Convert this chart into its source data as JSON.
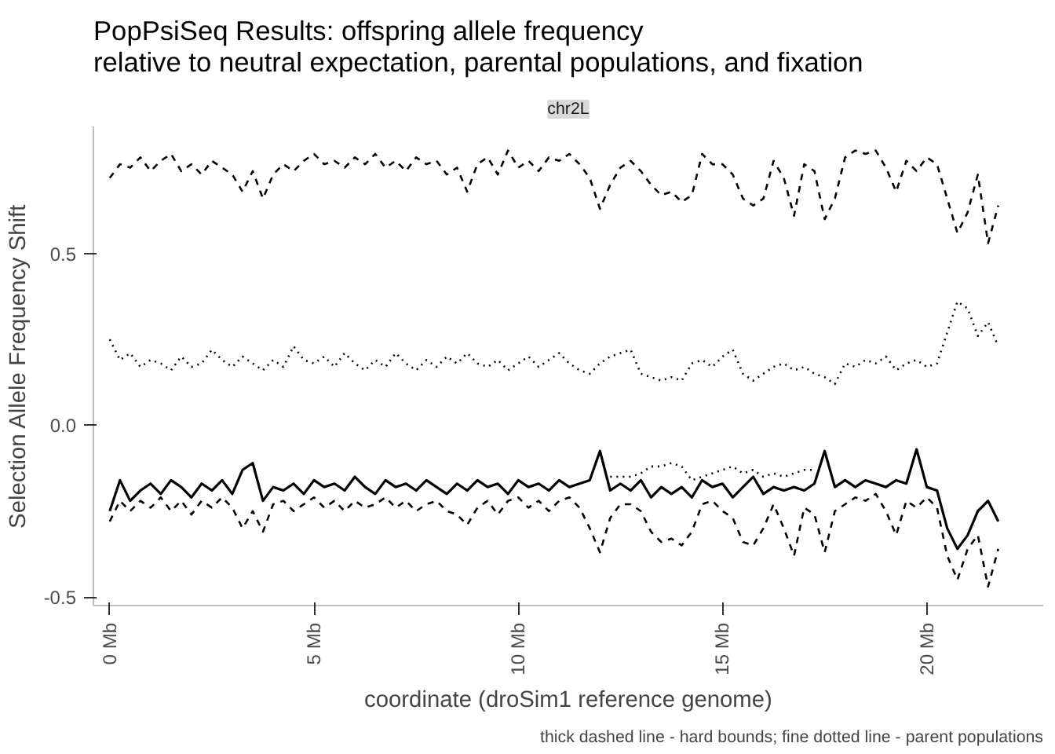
{
  "chart_data": {
    "type": "line",
    "title": "PopPsiSeq Results: offspring allele frequency\nrelative to neutral expectation, parental populations, and fixation",
    "subtitle": "chr2L",
    "xlabel": "coordinate (droSim1 reference genome)",
    "ylabel": "Selection Allele Frequency Shift",
    "annotations": [
      "thick dashed line - hard bounds; fine dotted line - parent populations"
    ],
    "x": [
      0,
      0.25,
      0.5,
      0.75,
      1,
      1.25,
      1.5,
      1.75,
      2,
      2.25,
      2.5,
      2.75,
      3,
      3.25,
      3.5,
      3.75,
      4,
      4.25,
      4.5,
      4.75,
      5,
      5.25,
      5.5,
      5.75,
      6,
      6.25,
      6.5,
      6.75,
      7,
      7.25,
      7.5,
      7.75,
      8,
      8.25,
      8.5,
      8.75,
      9,
      9.25,
      9.5,
      9.75,
      10,
      10.25,
      10.5,
      10.75,
      11,
      11.25,
      11.5,
      11.75,
      12,
      12.25,
      12.5,
      12.75,
      13,
      13.25,
      13.5,
      13.75,
      14,
      14.25,
      14.5,
      14.75,
      15,
      15.25,
      15.5,
      15.75,
      16,
      16.25,
      16.5,
      16.75,
      17,
      17.25,
      17.5,
      17.75,
      18,
      18.25,
      18.5,
      18.75,
      19,
      19.25,
      19.5,
      19.75,
      20,
      20.25,
      20.5,
      20.75,
      21,
      21.25,
      21.5,
      21.75
    ],
    "series": [
      {
        "color": "#000000",
        "line_style": "dashed",
        "values": [
          0.72,
          0.76,
          0.75,
          0.78,
          0.74,
          0.77,
          0.79,
          0.74,
          0.76,
          0.73,
          0.77,
          0.75,
          0.73,
          0.68,
          0.74,
          0.66,
          0.73,
          0.76,
          0.74,
          0.77,
          0.79,
          0.76,
          0.77,
          0.75,
          0.78,
          0.76,
          0.79,
          0.75,
          0.77,
          0.74,
          0.78,
          0.76,
          0.77,
          0.73,
          0.75,
          0.68,
          0.76,
          0.78,
          0.73,
          0.8,
          0.75,
          0.77,
          0.74,
          0.78,
          0.77,
          0.79,
          0.76,
          0.72,
          0.63,
          0.7,
          0.75,
          0.77,
          0.74,
          0.7,
          0.67,
          0.68,
          0.65,
          0.67,
          0.79,
          0.76,
          0.76,
          0.73,
          0.66,
          0.64,
          0.66,
          0.77,
          0.72,
          0.61,
          0.76,
          0.74,
          0.6,
          0.66,
          0.78,
          0.8,
          0.79,
          0.8,
          0.75,
          0.68,
          0.77,
          0.74,
          0.78,
          0.76,
          0.66,
          0.56,
          0.62,
          0.73,
          0.53,
          0.64
        ]
      },
      {
        "color": "#000000",
        "line_style": "dotted",
        "values": [
          0.25,
          0.19,
          0.21,
          0.17,
          0.19,
          0.18,
          0.16,
          0.2,
          0.17,
          0.18,
          0.22,
          0.19,
          0.17,
          0.2,
          0.18,
          0.16,
          0.19,
          0.17,
          0.23,
          0.19,
          0.18,
          0.2,
          0.17,
          0.21,
          0.18,
          0.16,
          0.19,
          0.17,
          0.21,
          0.18,
          0.16,
          0.19,
          0.17,
          0.2,
          0.18,
          0.21,
          0.18,
          0.17,
          0.19,
          0.16,
          0.18,
          0.2,
          0.17,
          0.19,
          0.21,
          0.18,
          0.16,
          0.15,
          0.18,
          0.2,
          0.21,
          0.22,
          0.15,
          0.14,
          0.13,
          0.14,
          0.13,
          0.18,
          0.19,
          0.17,
          0.2,
          0.22,
          0.15,
          0.13,
          0.15,
          0.17,
          0.18,
          0.16,
          0.17,
          0.15,
          0.14,
          0.12,
          0.18,
          0.17,
          0.19,
          0.18,
          0.2,
          0.16,
          0.18,
          0.19,
          0.17,
          0.18,
          0.27,
          0.36,
          0.34,
          0.26,
          0.3,
          0.23
        ]
      },
      {
        "color": "#000000",
        "line_style": "dotted",
        "x": [
          12.25,
          12.5,
          12.75,
          13,
          13.25,
          13.5,
          13.75,
          14,
          14.25,
          14.5,
          14.75,
          15,
          15.25,
          15.5,
          15.75,
          16,
          16.25,
          16.5,
          16.75,
          17,
          17.25
        ],
        "values": [
          -0.15,
          -0.15,
          -0.15,
          -0.14,
          -0.12,
          -0.12,
          -0.11,
          -0.12,
          -0.16,
          -0.15,
          -0.14,
          -0.13,
          -0.12,
          -0.14,
          -0.13,
          -0.15,
          -0.14,
          -0.15,
          -0.14,
          -0.13,
          -0.13
        ]
      },
      {
        "color": "#000000",
        "line_style": "dashed",
        "values": [
          -0.28,
          -0.22,
          -0.25,
          -0.22,
          -0.24,
          -0.21,
          -0.25,
          -0.22,
          -0.26,
          -0.22,
          -0.24,
          -0.21,
          -0.24,
          -0.3,
          -0.25,
          -0.31,
          -0.23,
          -0.22,
          -0.25,
          -0.23,
          -0.21,
          -0.24,
          -0.22,
          -0.25,
          -0.22,
          -0.24,
          -0.23,
          -0.21,
          -0.24,
          -0.22,
          -0.25,
          -0.23,
          -0.22,
          -0.25,
          -0.26,
          -0.29,
          -0.24,
          -0.22,
          -0.26,
          -0.22,
          -0.21,
          -0.24,
          -0.22,
          -0.25,
          -0.22,
          -0.21,
          -0.24,
          -0.3,
          -0.37,
          -0.27,
          -0.23,
          -0.23,
          -0.25,
          -0.31,
          -0.34,
          -0.33,
          -0.35,
          -0.31,
          -0.23,
          -0.22,
          -0.25,
          -0.27,
          -0.34,
          -0.35,
          -0.3,
          -0.23,
          -0.3,
          -0.38,
          -0.24,
          -0.26,
          -0.37,
          -0.25,
          -0.23,
          -0.21,
          -0.22,
          -0.2,
          -0.25,
          -0.32,
          -0.22,
          -0.24,
          -0.21,
          -0.24,
          -0.38,
          -0.45,
          -0.36,
          -0.32,
          -0.47,
          -0.36
        ]
      },
      {
        "color": "#000000",
        "line_style": "solid",
        "values": [
          -0.25,
          -0.16,
          -0.22,
          -0.19,
          -0.17,
          -0.2,
          -0.16,
          -0.18,
          -0.21,
          -0.17,
          -0.19,
          -0.16,
          -0.2,
          -0.13,
          -0.11,
          -0.22,
          -0.18,
          -0.19,
          -0.17,
          -0.2,
          -0.16,
          -0.18,
          -0.17,
          -0.19,
          -0.15,
          -0.18,
          -0.2,
          -0.16,
          -0.18,
          -0.17,
          -0.19,
          -0.16,
          -0.18,
          -0.2,
          -0.17,
          -0.19,
          -0.16,
          -0.18,
          -0.17,
          -0.2,
          -0.16,
          -0.18,
          -0.17,
          -0.19,
          -0.16,
          -0.18,
          -0.17,
          -0.16,
          -0.075,
          -0.19,
          -0.17,
          -0.19,
          -0.16,
          -0.21,
          -0.18,
          -0.2,
          -0.18,
          -0.21,
          -0.16,
          -0.18,
          -0.17,
          -0.21,
          -0.18,
          -0.15,
          -0.2,
          -0.18,
          -0.19,
          -0.18,
          -0.19,
          -0.17,
          -0.075,
          -0.18,
          -0.16,
          -0.18,
          -0.16,
          -0.17,
          -0.18,
          -0.16,
          -0.17,
          -0.07,
          -0.18,
          -0.19,
          -0.3,
          -0.36,
          -0.32,
          -0.25,
          -0.22,
          -0.28
        ]
      }
    ],
    "xlim": [
      -0.4,
      22.85
    ],
    "ylim": [
      -0.525,
      0.87
    ],
    "xticks": [
      {
        "value": 0,
        "label": "0 Mb"
      },
      {
        "value": 5,
        "label": "5 Mb"
      },
      {
        "value": 10,
        "label": "10 Mb"
      },
      {
        "value": 15,
        "label": "15 Mb"
      },
      {
        "value": 20,
        "label": "20 Mb"
      }
    ],
    "yticks": [
      {
        "value": -0.5,
        "label": "-0.5"
      },
      {
        "value": 0,
        "label": "0.0"
      },
      {
        "value": 0.5,
        "label": "0.5"
      }
    ],
    "grid": false
  }
}
